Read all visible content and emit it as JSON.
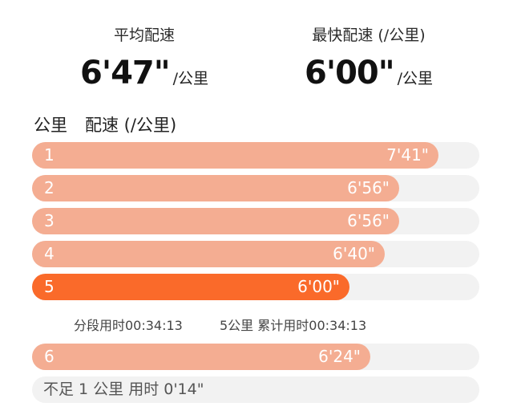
{
  "stats": {
    "average": {
      "label": "平均配速",
      "value": "6'47\"",
      "unit": "/公里"
    },
    "fastest": {
      "label": "最快配速 (/公里)",
      "value": "6'00\"",
      "unit": "/公里"
    }
  },
  "table_header": {
    "km": "公里",
    "pace": "配速 (/公里)"
  },
  "splits": [
    {
      "km": "1",
      "pace": "7'41\"",
      "pace_seconds": 461,
      "highlight": false
    },
    {
      "km": "2",
      "pace": "6'56\"",
      "pace_seconds": 416,
      "highlight": false
    },
    {
      "km": "3",
      "pace": "6'56\"",
      "pace_seconds": 416,
      "highlight": false
    },
    {
      "km": "4",
      "pace": "6'40\"",
      "pace_seconds": 400,
      "highlight": false
    },
    {
      "km": "5",
      "pace": "6'00\"",
      "pace_seconds": 360,
      "highlight": true
    },
    {
      "km": "6",
      "pace": "6'24\"",
      "pace_seconds": 384,
      "highlight": false
    }
  ],
  "summary": {
    "split_time": "分段用时00:34:13",
    "cumulative": "5公里 累计用时00:34:13"
  },
  "remainder": "不足 1 公里 用时 0'14\"",
  "colors": {
    "bar": "#f4ad92",
    "bar_highlight": "#fa6a2a",
    "track": "#f2f2f2"
  }
}
